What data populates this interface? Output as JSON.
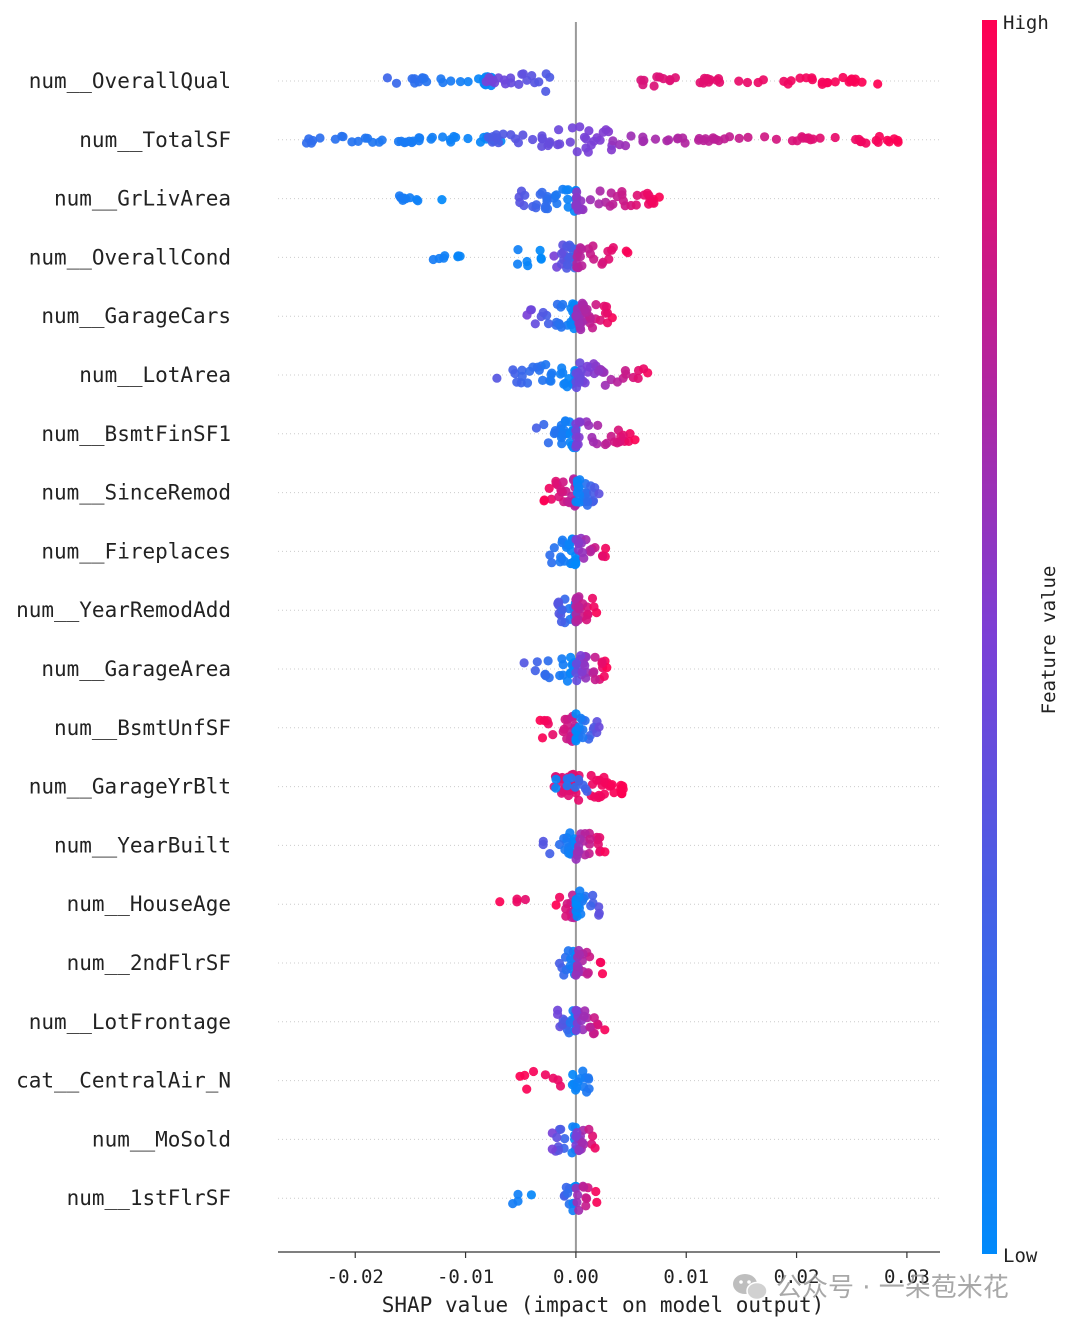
{
  "chart_data": {
    "type": "scatter",
    "subtype": "shap-beeswarm",
    "xlabel": "SHAP value (impact on model output)",
    "xlim": [
      -0.027,
      0.033
    ],
    "xticks": [
      -0.02,
      -0.01,
      0.0,
      0.01,
      0.02,
      0.03
    ],
    "xtick_labels": [
      "-0.02",
      "-0.01",
      "0.00",
      "0.01",
      "0.02",
      "0.03"
    ],
    "colorbar": {
      "title": "Feature value",
      "high_label": "High",
      "low_label": "Low",
      "low_color": "#008afb",
      "mid_color": "#7b3fd6",
      "high_color": "#ff0052"
    },
    "features": [
      {
        "name": "num__OverallQual",
        "clusters": [
          {
            "min": -0.0172,
            "max": -0.0075,
            "n": 26,
            "color_low": 0.0,
            "color_high": 0.25
          },
          {
            "min": -0.0085,
            "max": -0.002,
            "n": 20,
            "color_low": 0.3,
            "color_high": 0.5
          },
          {
            "min": 0.0055,
            "max": 0.0275,
            "n": 46,
            "color_low": 0.85,
            "color_high": 1.0
          }
        ]
      },
      {
        "name": "num__TotalSF",
        "clusters": [
          {
            "min": -0.025,
            "max": -0.006,
            "n": 40,
            "color_low": 0.0,
            "color_high": 0.2
          },
          {
            "min": -0.008,
            "max": 0.004,
            "n": 40,
            "color_low": 0.3,
            "color_high": 0.55
          },
          {
            "min": 0.003,
            "max": 0.0295,
            "n": 52,
            "color_low": 0.6,
            "color_high": 1.0
          }
        ]
      },
      {
        "name": "num__GrLivArea",
        "clusters": [
          {
            "min": -0.016,
            "max": -0.012,
            "n": 10,
            "color_low": 0.0,
            "color_high": 0.1
          },
          {
            "min": -0.0057,
            "max": 0.0,
            "n": 30,
            "color_low": 0.0,
            "color_high": 0.4
          },
          {
            "min": 0.0,
            "max": 0.0078,
            "n": 36,
            "color_low": 0.55,
            "color_high": 1.0
          }
        ]
      },
      {
        "name": "num__OverallCond",
        "clusters": [
          {
            "min": -0.0132,
            "max": -0.0095,
            "n": 7,
            "color_low": 0.0,
            "color_high": 0.1
          },
          {
            "min": -0.0065,
            "max": -0.003,
            "n": 7,
            "color_low": 0.0,
            "color_high": 0.1
          },
          {
            "min": -0.002,
            "max": 0.0,
            "n": 22,
            "color_low": 0.2,
            "color_high": 0.5
          },
          {
            "min": 0.0,
            "max": 0.005,
            "n": 22,
            "color_low": 0.7,
            "color_high": 1.0
          }
        ]
      },
      {
        "name": "num__GarageCars",
        "clusters": [
          {
            "min": -0.0045,
            "max": 0.0,
            "n": 30,
            "color_low": 0.0,
            "color_high": 0.5
          },
          {
            "min": 0.0,
            "max": 0.0035,
            "n": 36,
            "color_low": 0.6,
            "color_high": 1.0
          }
        ]
      },
      {
        "name": "num__LotArea",
        "clusters": [
          {
            "min": -0.0072,
            "max": 0.0,
            "n": 32,
            "color_low": 0.0,
            "color_high": 0.35
          },
          {
            "min": 0.0,
            "max": 0.007,
            "n": 36,
            "color_low": 0.4,
            "color_high": 1.0
          }
        ]
      },
      {
        "name": "num__BsmtFinSF1",
        "clusters": [
          {
            "min": -0.0038,
            "max": 0.0,
            "n": 28,
            "color_low": 0.0,
            "color_high": 0.3
          },
          {
            "min": 0.0,
            "max": 0.0055,
            "n": 28,
            "color_low": 0.5,
            "color_high": 1.0
          }
        ]
      },
      {
        "name": "num__SinceRemod",
        "clusters": [
          {
            "min": -0.003,
            "max": 0.0,
            "n": 26,
            "color_low": 0.7,
            "color_high": 1.0
          },
          {
            "min": 0.0,
            "max": 0.0022,
            "n": 24,
            "color_low": 0.0,
            "color_high": 0.4
          }
        ]
      },
      {
        "name": "num__Fireplaces",
        "clusters": [
          {
            "min": -0.0025,
            "max": 0.0,
            "n": 24,
            "color_low": 0.0,
            "color_high": 0.2
          },
          {
            "min": 0.0,
            "max": 0.003,
            "n": 18,
            "color_low": 0.5,
            "color_high": 1.0
          }
        ]
      },
      {
        "name": "num__YearRemodAdd",
        "clusters": [
          {
            "min": -0.0018,
            "max": 0.0,
            "n": 20,
            "color_low": 0.0,
            "color_high": 0.4
          },
          {
            "min": 0.0,
            "max": 0.002,
            "n": 24,
            "color_low": 0.7,
            "color_high": 1.0
          }
        ]
      },
      {
        "name": "num__GarageArea",
        "clusters": [
          {
            "min": -0.0048,
            "max": 0.0,
            "n": 22,
            "color_low": 0.0,
            "color_high": 0.35
          },
          {
            "min": 0.0,
            "max": 0.0028,
            "n": 26,
            "color_low": 0.4,
            "color_high": 1.0
          }
        ]
      },
      {
        "name": "num__BsmtUnfSF",
        "clusters": [
          {
            "min": -0.0033,
            "max": 0.0,
            "n": 22,
            "color_low": 0.75,
            "color_high": 1.0
          },
          {
            "min": 0.0,
            "max": 0.0022,
            "n": 22,
            "color_low": 0.0,
            "color_high": 0.45
          }
        ]
      },
      {
        "name": "num__GarageYrBlt",
        "clusters": [
          {
            "min": -0.002,
            "max": 0.0045,
            "n": 52,
            "color_low": 0.85,
            "color_high": 1.0
          },
          {
            "min": -0.002,
            "max": 0.0012,
            "n": 10,
            "color_low": 0.0,
            "color_high": 0.3
          }
        ]
      },
      {
        "name": "num__YearBuilt",
        "clusters": [
          {
            "min": -0.003,
            "max": 0.0,
            "n": 20,
            "color_low": 0.0,
            "color_high": 0.35
          },
          {
            "min": 0.0,
            "max": 0.0028,
            "n": 22,
            "color_low": 0.6,
            "color_high": 1.0
          }
        ]
      },
      {
        "name": "num__HouseAge",
        "clusters": [
          {
            "min": -0.0072,
            "max": -0.0045,
            "n": 4,
            "color_low": 0.9,
            "color_high": 1.0
          },
          {
            "min": -0.0018,
            "max": 0.0,
            "n": 18,
            "color_low": 0.7,
            "color_high": 1.0
          },
          {
            "min": 0.0,
            "max": 0.0022,
            "n": 20,
            "color_low": 0.0,
            "color_high": 0.4
          }
        ]
      },
      {
        "name": "num__2ndFlrSF",
        "clusters": [
          {
            "min": -0.0015,
            "max": 0.0,
            "n": 14,
            "color_low": 0.0,
            "color_high": 0.3
          },
          {
            "min": 0.0,
            "max": 0.0025,
            "n": 20,
            "color_low": 0.6,
            "color_high": 1.0
          }
        ]
      },
      {
        "name": "num__LotFrontage",
        "clusters": [
          {
            "min": -0.0018,
            "max": 0.0,
            "n": 18,
            "color_low": 0.0,
            "color_high": 0.5
          },
          {
            "min": 0.0,
            "max": 0.0028,
            "n": 20,
            "color_low": 0.5,
            "color_high": 1.0
          }
        ]
      },
      {
        "name": "cat__CentralAir_N",
        "clusters": [
          {
            "min": -0.0052,
            "max": -0.0008,
            "n": 8,
            "color_low": 0.9,
            "color_high": 1.0
          },
          {
            "min": -0.0005,
            "max": 0.002,
            "n": 14,
            "color_low": 0.0,
            "color_high": 0.2
          }
        ]
      },
      {
        "name": "num__MoSold",
        "clusters": [
          {
            "min": -0.0022,
            "max": 0.0,
            "n": 16,
            "color_low": 0.0,
            "color_high": 0.5
          },
          {
            "min": 0.0,
            "max": 0.002,
            "n": 16,
            "color_low": 0.5,
            "color_high": 1.0
          }
        ]
      },
      {
        "name": "num__1stFlrSF",
        "clusters": [
          {
            "min": -0.006,
            "max": -0.0035,
            "n": 4,
            "color_low": 0.0,
            "color_high": 0.1
          },
          {
            "min": -0.0015,
            "max": 0.0,
            "n": 12,
            "color_low": 0.0,
            "color_high": 0.4
          },
          {
            "min": 0.0,
            "max": 0.002,
            "n": 12,
            "color_low": 0.6,
            "color_high": 1.0
          }
        ]
      }
    ]
  },
  "watermark": {
    "text": "公众号 · 一朵苞米花"
  }
}
